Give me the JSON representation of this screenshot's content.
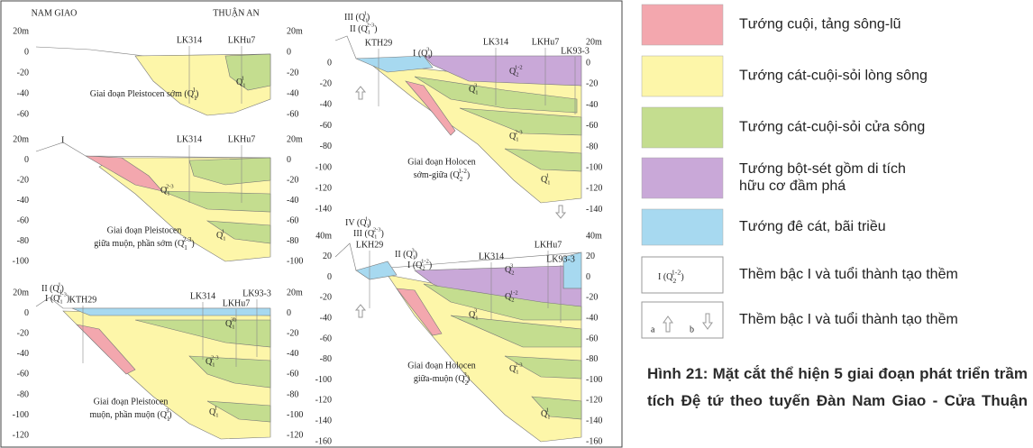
{
  "panels": [
    {
      "top_labels": [
        "NAM GIAO",
        "THUẬN AN"
      ],
      "depth_left": [
        "20m",
        "0",
        "-20",
        "-40",
        "-60"
      ],
      "depth_right": [
        "20m",
        "0",
        "-20",
        "-40",
        "-60"
      ],
      "wells": [
        "LK314",
        "LKHu7"
      ],
      "terraces": [],
      "units": [
        {
          "q": "Q",
          "sub": "1",
          "sup": "1"
        }
      ],
      "stage": [
        {
          "pre": "Giai đoạn Pleistocen sớm (",
          "q": "Q",
          "sub": "1",
          "sup": "1",
          "post": ")"
        }
      ]
    },
    {
      "top_labels": [],
      "depth_left": [
        "20m",
        "0",
        "-20",
        "-40",
        "-60",
        "-80",
        "-100"
      ],
      "depth_right": [
        "20m",
        "0",
        "-20",
        "-40",
        "-60",
        "-80",
        "-100"
      ],
      "wells": [
        "LK314",
        "LKHu7"
      ],
      "terraces": [
        "I"
      ],
      "units": [
        {
          "q": "Q",
          "sub": "1",
          "sup": "2-3"
        },
        {
          "q": "Q",
          "sub": "1",
          "sup": "1"
        }
      ],
      "stage": [
        "Giai đoạn Pleistocen",
        {
          "pre": "giữa muộn, phần sớm (",
          "q": "Q",
          "sub": "1",
          "sup": "2-3",
          "post": ")"
        }
      ]
    },
    {
      "top_labels": [],
      "depth_left": [
        "20m",
        "0",
        "-20",
        "-40",
        "-60",
        "-80",
        "-100",
        "-120"
      ],
      "depth_right": [
        "20m",
        "0",
        "-20",
        "-40",
        "-60",
        "-80",
        "-100",
        "-120"
      ],
      "wells": [
        "KTH29",
        "LK314",
        "LK93-3",
        "LKHu7"
      ],
      "terraces": [
        {
          "pre": "II (",
          "q": "Q",
          "sub": "1",
          "sup": "1",
          "post": ")"
        },
        {
          "pre": "I (",
          "q": "Q",
          "sub": "1",
          "sup": "2-3",
          "post": ")"
        }
      ],
      "units": [
        {
          "q": "Q",
          "sub": "1",
          "sup": "3b"
        },
        {
          "q": "Q",
          "sub": "1",
          "sup": "2-3"
        },
        {
          "q": "Q",
          "sub": "1",
          "sup": "1"
        }
      ],
      "stage": [
        "Giai đoạn Pleistocen",
        {
          "pre": "muộn, phần muộn (",
          "q": "Q",
          "sub": "1",
          "sup": "3",
          "post": ")"
        }
      ]
    },
    {
      "top_labels": [],
      "depth_left": [
        "0",
        "-20",
        "-40",
        "-60",
        "-80",
        "-100",
        "-120",
        "-140"
      ],
      "depth_right": [
        "20m",
        "0",
        "-20",
        "-40",
        "-60",
        "-80",
        "-100",
        "-120",
        "-140"
      ],
      "wells": [
        "KTH29",
        "LK314",
        "LKHu7",
        "LK93-3"
      ],
      "terraces": [
        {
          "pre": "III (",
          "q": "Q",
          "sub": "1",
          "sup": "1",
          "post": ")"
        },
        {
          "pre": "II (",
          "q": "Q",
          "sub": "1",
          "sup": "2-3",
          "post": ")"
        },
        {
          "pre": "I (",
          "q": "Q",
          "sub": "1",
          "sup": "3",
          "post": ")"
        }
      ],
      "units": [
        {
          "q": "Q",
          "sub": "2",
          "sup": "1-2"
        },
        {
          "q": "Q",
          "sub": "1",
          "sup": "3"
        },
        {
          "q": "Q",
          "sub": "1",
          "sup": "2-3"
        },
        {
          "q": "Q",
          "sub": "1",
          "sup": "1"
        }
      ],
      "stage": [
        "Giai đoạn Holocen",
        {
          "pre": "sớm-giữa (",
          "q": "Q",
          "sub": "2",
          "sup": "1-2",
          "post": ")"
        }
      ]
    },
    {
      "top_labels": [],
      "depth_left": [
        "40m",
        "20",
        "0",
        "-20",
        "-40",
        "-60",
        "-80",
        "-100",
        "-120",
        "-140",
        "-160"
      ],
      "depth_right": [
        "40m",
        "20",
        "0",
        "-20",
        "-40",
        "-60",
        "-80",
        "-100",
        "-120",
        "-140",
        "-160"
      ],
      "wells": [
        "LKH29",
        "LK314",
        "LKHu7",
        "LK93-3"
      ],
      "terraces": [
        {
          "pre": "IV (",
          "q": "Q",
          "sub": "1",
          "sup": "1",
          "post": ")"
        },
        {
          "pre": "III (",
          "q": "Q",
          "sub": "1",
          "sup": "2-3",
          "post": ")"
        },
        {
          "pre": "II (",
          "q": "Q",
          "sub": "1",
          "sup": "3",
          "post": ")"
        },
        {
          "pre": "I (",
          "q": "Q",
          "sub": "2",
          "sup": "1-2",
          "post": ")"
        }
      ],
      "units": [
        {
          "q": "Q",
          "sub": "2",
          "sup": "3"
        },
        {
          "q": "Q",
          "sub": "2",
          "sup": "1-2"
        },
        {
          "q": "Q",
          "sub": "1",
          "sup": "3"
        },
        {
          "q": "Q",
          "sub": "1",
          "sup": "2-3"
        },
        {
          "q": "Q",
          "sub": "1",
          "sup": "1"
        }
      ],
      "stage": [
        "Giai đoạn Holocen",
        {
          "pre": "giữa-muộn (",
          "q": "Q",
          "sub": "2",
          "sup": "3",
          "post": ")"
        }
      ]
    }
  ],
  "legend": {
    "items": [
      {
        "color": "#f3a7ae",
        "lines": [
          "Tướng cuội, tảng sông-lũ"
        ]
      },
      {
        "color": "#fdf6a9",
        "lines": [
          "Tướng cát-cuội-sỏi lòng sông"
        ]
      },
      {
        "color": "#c4dd8f",
        "lines": [
          "Tướng cát-cuội-sỏi cửa sông"
        ]
      },
      {
        "color": "#c9a8d8",
        "lines": [
          "Tướng bột-sét gồm di tích",
          "hữu cơ đầm phá"
        ]
      },
      {
        "color": "#a7d9f0",
        "lines": [
          "Tướng đê cát, bãi triều"
        ]
      }
    ],
    "terrace_symbol": {
      "pre": "I (",
      "q": "Q",
      "sub": "2",
      "sup": "1-2",
      "post": ")"
    },
    "terrace_text": "Thềm bậc I và tuổi thành tạo thềm",
    "arrow_symbol": {
      "a": "a",
      "b": "b"
    },
    "arrow_text": "Thềm bậc I và tuổi thành tạo thềm"
  },
  "caption": "Hình 21: Mặt cắt thể hiện 5 giai đoạn phát triển trầm tích Đệ tứ theo tuyến Đàn Nam Giao - Cửa Thuận"
}
